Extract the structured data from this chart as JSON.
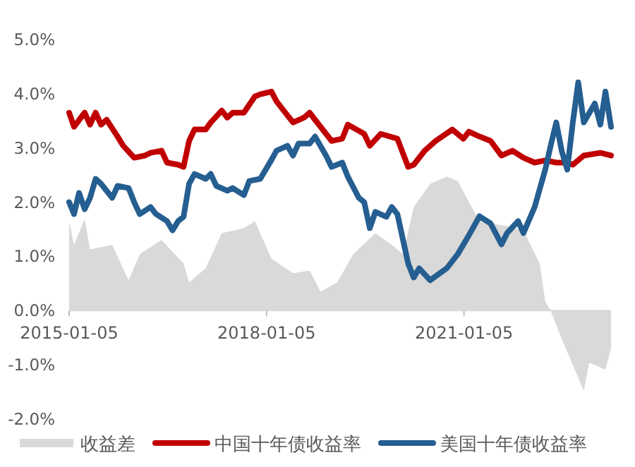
{
  "chart_data": {
    "type": "line",
    "xlim": [
      "2015-01-05",
      "2023-04-01"
    ],
    "xticks": [
      {
        "value": "2015-01-05",
        "label": "2015-01-05"
      },
      {
        "value": "2018-01-05",
        "label": "2018-01-05"
      },
      {
        "value": "2021-01-05",
        "label": "2021-01-05"
      }
    ],
    "ylim": [
      -2,
      5
    ],
    "yticks": [
      {
        "value": -2,
        "label": "-2.0%"
      },
      {
        "value": -1,
        "label": "-1.0%"
      },
      {
        "value": 0,
        "label": "0.0%"
      },
      {
        "value": 1,
        "label": "1.0%"
      },
      {
        "value": 2,
        "label": "2.0%"
      },
      {
        "value": 3,
        "label": "3.0%"
      },
      {
        "value": 4,
        "label": "4.0%"
      },
      {
        "value": 5,
        "label": "5.0%"
      }
    ],
    "grid": false,
    "legend": "bottom",
    "series": [
      {
        "name": "收益差",
        "type": "area",
        "color": "#d9d9d9",
        "x": [
          "2015-01-05",
          "2015-02",
          "2015-04",
          "2015-05",
          "2015-09",
          "2015-12",
          "2016-02",
          "2016-06",
          "2016-10",
          "2016-11",
          "2017-02",
          "2017-05",
          "2017-09",
          "2017-11",
          "2018-02",
          "2018-06",
          "2018-09",
          "2018-11",
          "2019-02",
          "2019-05",
          "2019-09",
          "2019-12",
          "2020-02",
          "2020-04",
          "2020-07",
          "2020-10",
          "2020-12",
          "2021-02",
          "2021-04",
          "2021-09",
          "2021-12",
          "2022-03",
          "2022-04",
          "2022-05",
          "2022-07",
          "2022-11",
          "2022-12",
          "2023-03",
          "2023-04"
        ],
        "values": [
          1.65,
          1.21,
          1.69,
          1.13,
          1.21,
          0.56,
          1.04,
          1.3,
          0.87,
          0.52,
          0.78,
          1.43,
          1.52,
          1.65,
          0.96,
          0.69,
          0.74,
          0.35,
          0.52,
          1.04,
          1.43,
          1.21,
          1.04,
          1.91,
          2.34,
          2.47,
          2.39,
          2.0,
          1.65,
          1.56,
          1.48,
          0.87,
          0.17,
          0.0,
          -0.52,
          -1.48,
          -0.96,
          -1.09,
          -0.7
        ]
      },
      {
        "name": "中国十年债收益率",
        "type": "line",
        "color": "#c00000",
        "x": [
          "2015-01-05",
          "2015-02",
          "2015-04",
          "2015-05",
          "2015-06",
          "2015-07",
          "2015-08",
          "2015-10",
          "2015-11",
          "2016-01",
          "2016-03",
          "2016-04",
          "2016-06",
          "2016-07",
          "2016-09",
          "2016-10",
          "2016-11",
          "2016-12",
          "2017-02",
          "2017-03",
          "2017-05",
          "2017-06",
          "2017-07",
          "2017-09",
          "2017-11",
          "2017-12",
          "2018-02",
          "2018-03",
          "2018-05",
          "2018-06",
          "2018-08",
          "2018-09",
          "2018-10",
          "2019-01",
          "2019-03",
          "2019-04",
          "2019-07",
          "2019-08",
          "2019-10",
          "2020-01",
          "2020-03",
          "2020-04",
          "2020-06",
          "2020-08",
          "2020-11",
          "2021-01",
          "2021-02",
          "2021-04",
          "2021-06",
          "2021-08",
          "2021-10",
          "2021-12",
          "2022-02",
          "2022-04",
          "2022-06",
          "2022-08",
          "2022-09",
          "2022-11",
          "2023-02",
          "2023-04"
        ],
        "values": [
          3.65,
          3.39,
          3.65,
          3.43,
          3.65,
          3.43,
          3.52,
          3.21,
          3.04,
          2.82,
          2.86,
          2.91,
          2.95,
          2.73,
          2.69,
          2.65,
          3.13,
          3.34,
          3.34,
          3.47,
          3.69,
          3.56,
          3.65,
          3.65,
          3.95,
          3.99,
          4.04,
          3.86,
          3.6,
          3.47,
          3.56,
          3.65,
          3.52,
          3.13,
          3.17,
          3.43,
          3.26,
          3.04,
          3.26,
          3.17,
          2.65,
          2.69,
          2.95,
          3.13,
          3.34,
          3.17,
          3.3,
          3.21,
          3.13,
          2.86,
          2.95,
          2.82,
          2.73,
          2.77,
          2.73,
          2.73,
          2.69,
          2.86,
          2.91,
          2.86
        ]
      },
      {
        "name": "美国十年债收益率",
        "type": "line",
        "color": "#255e91",
        "x": [
          "2015-01-05",
          "2015-02",
          "2015-03",
          "2015-04",
          "2015-05",
          "2015-06",
          "2015-07",
          "2015-09",
          "2015-10",
          "2015-12",
          "2016-01",
          "2016-02",
          "2016-04",
          "2016-05",
          "2016-07",
          "2016-08",
          "2016-09",
          "2016-10",
          "2016-11",
          "2016-12",
          "2017-02",
          "2017-03",
          "2017-04",
          "2017-06",
          "2017-07",
          "2017-09",
          "2017-10",
          "2017-12",
          "2018-02",
          "2018-03",
          "2018-05",
          "2018-06",
          "2018-07",
          "2018-09",
          "2018-10",
          "2018-12",
          "2019-01",
          "2019-03",
          "2019-04",
          "2019-06",
          "2019-07",
          "2019-08",
          "2019-09",
          "2019-11",
          "2019-12",
          "2020-01",
          "2020-03",
          "2020-04",
          "2020-05",
          "2020-07",
          "2020-10",
          "2020-12",
          "2021-02",
          "2021-04",
          "2021-06",
          "2021-08",
          "2021-09",
          "2021-11",
          "2021-12",
          "2022-02",
          "2022-04",
          "2022-05",
          "2022-06",
          "2022-07",
          "2022-08",
          "2022-09",
          "2022-10",
          "2022-11",
          "2023-01",
          "2023-02",
          "2023-03",
          "2023-04"
        ],
        "values": [
          2.0,
          1.78,
          2.17,
          1.87,
          2.08,
          2.43,
          2.34,
          2.08,
          2.3,
          2.26,
          2.0,
          1.78,
          1.91,
          1.78,
          1.65,
          1.48,
          1.65,
          1.73,
          2.34,
          2.52,
          2.43,
          2.52,
          2.3,
          2.21,
          2.26,
          2.13,
          2.39,
          2.43,
          2.78,
          2.95,
          3.04,
          2.86,
          3.08,
          3.08,
          3.21,
          2.86,
          2.65,
          2.73,
          2.47,
          2.08,
          2.0,
          1.52,
          1.82,
          1.73,
          1.91,
          1.78,
          0.87,
          0.61,
          0.78,
          0.56,
          0.78,
          1.04,
          1.39,
          1.74,
          1.61,
          1.22,
          1.43,
          1.65,
          1.43,
          1.91,
          2.6,
          3.04,
          3.47,
          2.95,
          2.6,
          3.47,
          4.21,
          3.47,
          3.82,
          3.43,
          4.04,
          3.39
        ]
      }
    ]
  }
}
